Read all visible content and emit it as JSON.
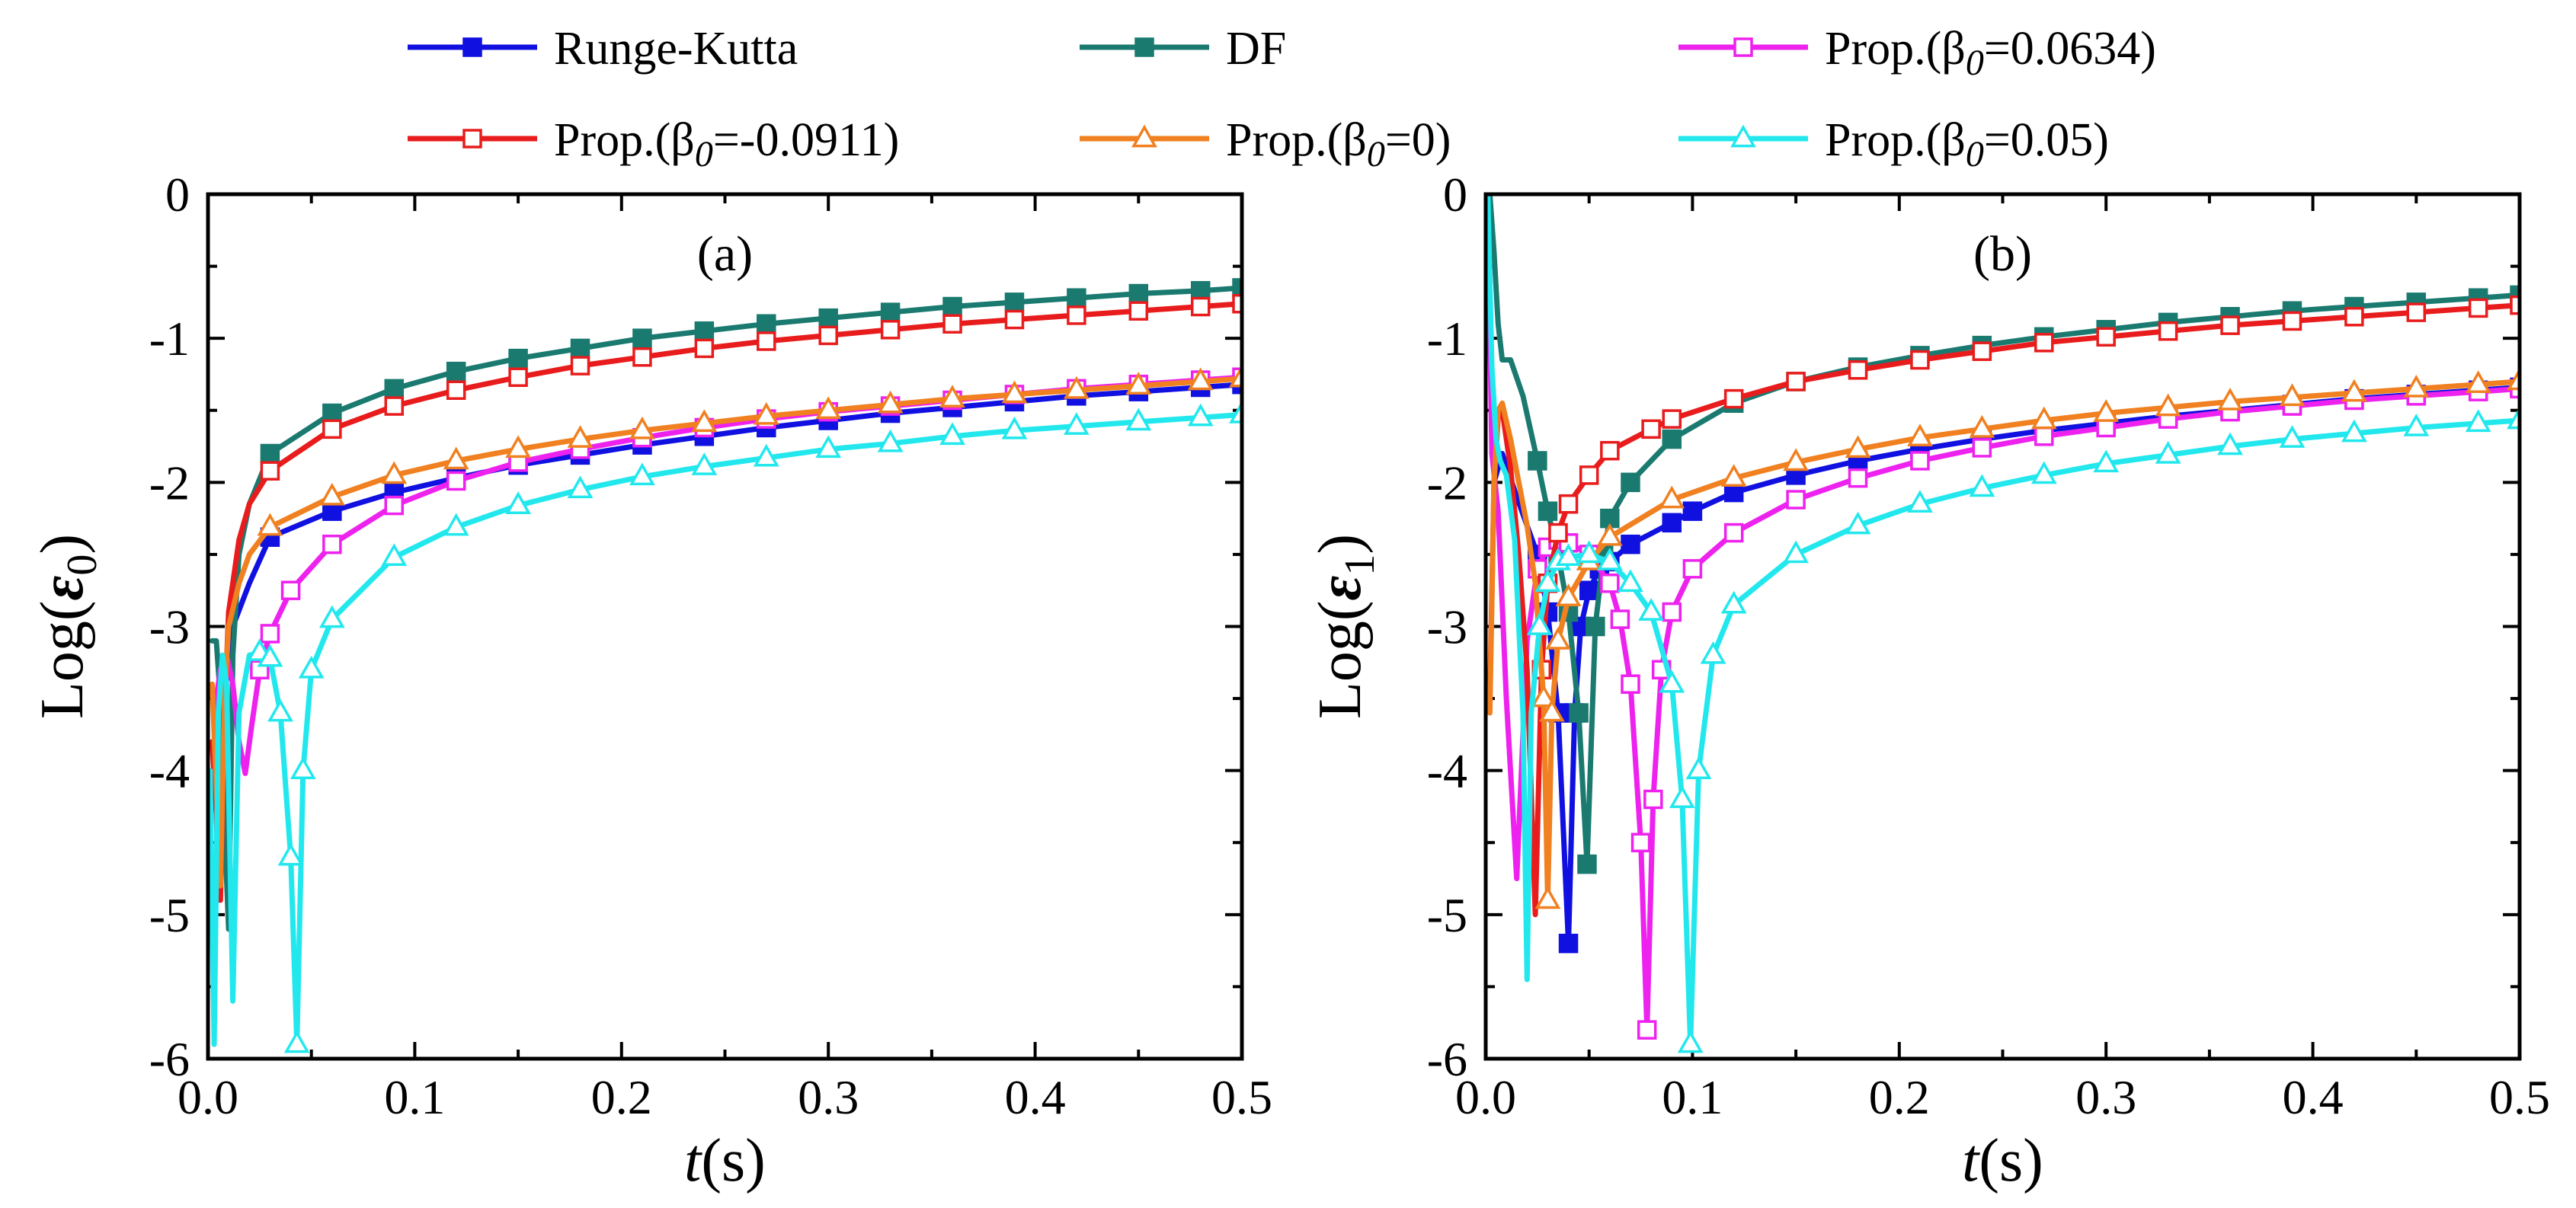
{
  "legend": {
    "entries": [
      {
        "series": "rk",
        "prefix": "Runge-Kutta",
        "sub": "",
        "suffix": ""
      },
      {
        "series": "df",
        "prefix": "DF",
        "sub": "",
        "suffix": ""
      },
      {
        "series": "p0634",
        "prefix": "Prop.(β",
        "sub": "0",
        "suffix": "=0.0634)"
      },
      {
        "series": "pm0911",
        "prefix": "Prop.(β",
        "sub": "0",
        "suffix": "=-0.0911)"
      },
      {
        "series": "p0",
        "prefix": "Prop.(β",
        "sub": "0",
        "suffix": "=0)"
      },
      {
        "series": "p05",
        "prefix": "Prop.(β",
        "sub": "0",
        "suffix": "=0.05)"
      }
    ]
  },
  "chart_data": [
    {
      "type": "line",
      "panel": "(a)",
      "xlabel": "t(s)",
      "ylabel": "Log(ε0)",
      "xlim": [
        0,
        0.5
      ],
      "ylim": [
        -6,
        0
      ],
      "xticks": [
        "0.0",
        "0.1",
        "0.2",
        "0.3",
        "0.4",
        "0.5"
      ],
      "yticks": [
        "0",
        "-1",
        "-2",
        "-3",
        "-4",
        "-5",
        "-6"
      ],
      "series": [
        {
          "key": "rk",
          "name": "Runge-Kutta",
          "color": "#1010e0",
          "marker": "square-filled",
          "x": [
            0.003,
            0.005,
            0.007,
            0.009,
            0.012,
            0.02,
            0.03,
            0.06,
            0.09,
            0.12,
            0.15,
            0.18,
            0.21,
            0.24,
            0.27,
            0.3,
            0.33,
            0.36,
            0.39,
            0.42,
            0.45,
            0.48,
            0.5
          ],
          "y": [
            -3.6,
            -4.9,
            -4.6,
            -3.3,
            -3.0,
            -2.7,
            -2.38,
            -2.2,
            -2.07,
            -1.97,
            -1.88,
            -1.81,
            -1.74,
            -1.68,
            -1.62,
            -1.57,
            -1.52,
            -1.48,
            -1.44,
            -1.4,
            -1.37,
            -1.34,
            -1.32
          ]
        },
        {
          "key": "df",
          "name": "DF",
          "color": "#1a7a70",
          "marker": "square-filled",
          "x": [
            0.002,
            0.004,
            0.006,
            0.008,
            0.01,
            0.012,
            0.015,
            0.02,
            0.03,
            0.06,
            0.09,
            0.12,
            0.15,
            0.18,
            0.21,
            0.24,
            0.27,
            0.3,
            0.33,
            0.36,
            0.39,
            0.42,
            0.45,
            0.48,
            0.5
          ],
          "y": [
            -3.1,
            -3.1,
            -3.5,
            -4.4,
            -5.1,
            -3.2,
            -2.5,
            -2.15,
            -1.8,
            -1.52,
            -1.35,
            -1.23,
            -1.14,
            -1.07,
            -1.0,
            -0.95,
            -0.9,
            -0.86,
            -0.82,
            -0.78,
            -0.75,
            -0.72,
            -0.69,
            -0.67,
            -0.65
          ]
        },
        {
          "key": "p0634",
          "name": "Prop.(β0=0.0634)",
          "color": "#ee22ee",
          "marker": "square-open",
          "x": [
            0.003,
            0.006,
            0.009,
            0.012,
            0.015,
            0.018,
            0.021,
            0.025,
            0.03,
            0.04,
            0.06,
            0.09,
            0.12,
            0.15,
            0.18,
            0.21,
            0.24,
            0.27,
            0.3,
            0.33,
            0.36,
            0.39,
            0.42,
            0.45,
            0.48,
            0.5
          ],
          "y": [
            -3.6,
            -3.3,
            -3.2,
            -3.4,
            -3.8,
            -4.02,
            -3.7,
            -3.3,
            -3.05,
            -2.75,
            -2.43,
            -2.16,
            -1.99,
            -1.86,
            -1.77,
            -1.69,
            -1.62,
            -1.56,
            -1.51,
            -1.47,
            -1.43,
            -1.39,
            -1.35,
            -1.32,
            -1.29,
            -1.27
          ]
        },
        {
          "key": "pm0911",
          "name": "Prop.(β0=-0.0911)",
          "color": "#e81c1c",
          "marker": "square-open",
          "x": [
            0.002,
            0.004,
            0.006,
            0.008,
            0.01,
            0.015,
            0.02,
            0.03,
            0.06,
            0.09,
            0.12,
            0.15,
            0.18,
            0.21,
            0.24,
            0.27,
            0.3,
            0.33,
            0.36,
            0.39,
            0.42,
            0.45,
            0.48,
            0.5
          ],
          "y": [
            -3.8,
            -4.3,
            -4.9,
            -3.6,
            -2.9,
            -2.4,
            -2.15,
            -1.92,
            -1.63,
            -1.47,
            -1.36,
            -1.27,
            -1.19,
            -1.13,
            -1.07,
            -1.02,
            -0.98,
            -0.94,
            -0.9,
            -0.87,
            -0.84,
            -0.81,
            -0.78,
            -0.76
          ]
        },
        {
          "key": "p0",
          "name": "Prop.(β0=0)",
          "color": "#f08020",
          "marker": "triangle-open",
          "x": [
            0.002,
            0.004,
            0.006,
            0.008,
            0.01,
            0.015,
            0.02,
            0.03,
            0.06,
            0.09,
            0.12,
            0.15,
            0.18,
            0.21,
            0.24,
            0.27,
            0.3,
            0.33,
            0.36,
            0.39,
            0.42,
            0.45,
            0.48,
            0.5
          ],
          "y": [
            -3.4,
            -4.1,
            -4.8,
            -3.5,
            -3.0,
            -2.7,
            -2.5,
            -2.31,
            -2.1,
            -1.95,
            -1.85,
            -1.77,
            -1.7,
            -1.64,
            -1.59,
            -1.54,
            -1.5,
            -1.46,
            -1.42,
            -1.39,
            -1.36,
            -1.33,
            -1.3,
            -1.28
          ]
        },
        {
          "key": "p05",
          "name": "Prop.(β0=0.05)",
          "color": "#22e8ee",
          "marker": "triangle-open",
          "x": [
            0.001,
            0.003,
            0.005,
            0.007,
            0.009,
            0.012,
            0.015,
            0.02,
            0.025,
            0.03,
            0.035,
            0.04,
            0.043,
            0.046,
            0.05,
            0.06,
            0.09,
            0.12,
            0.15,
            0.18,
            0.21,
            0.24,
            0.27,
            0.3,
            0.33,
            0.36,
            0.39,
            0.42,
            0.45,
            0.48,
            0.5
          ],
          "y": [
            -4.0,
            -5.9,
            -3.6,
            -3.2,
            -3.4,
            -5.6,
            -3.6,
            -3.2,
            -3.18,
            -3.22,
            -3.6,
            -4.6,
            -5.9,
            -4.0,
            -3.3,
            -2.95,
            -2.52,
            -2.31,
            -2.16,
            -2.05,
            -1.96,
            -1.89,
            -1.83,
            -1.77,
            -1.73,
            -1.68,
            -1.64,
            -1.61,
            -1.58,
            -1.55,
            -1.53
          ]
        }
      ]
    },
    {
      "type": "line",
      "panel": "(b)",
      "xlabel": "t(s)",
      "ylabel": "Log(ε1)",
      "xlim": [
        0,
        0.5
      ],
      "ylim": [
        -6,
        0
      ],
      "xticks": [
        "0.0",
        "0.1",
        "0.2",
        "0.3",
        "0.4",
        "0.5"
      ],
      "yticks": [
        "0",
        "-1",
        "-2",
        "-3",
        "-4",
        "-5",
        "-6"
      ],
      "series": [
        {
          "key": "rk",
          "name": "Runge-Kutta",
          "color": "#1010e0",
          "marker": "square-filled",
          "x": [
            0.004,
            0.008,
            0.015,
            0.02,
            0.025,
            0.03,
            0.035,
            0.04,
            0.043,
            0.046,
            0.05,
            0.055,
            0.06,
            0.07,
            0.09,
            0.1,
            0.12,
            0.15,
            0.18,
            0.21,
            0.24,
            0.27,
            0.3,
            0.33,
            0.36,
            0.39,
            0.42,
            0.45,
            0.48,
            0.5
          ],
          "y": [
            -2.0,
            -1.8,
            -2.1,
            -2.3,
            -2.5,
            -2.9,
            -3.6,
            -5.2,
            -3.6,
            -3.0,
            -2.75,
            -2.6,
            -2.55,
            -2.43,
            -2.28,
            -2.2,
            -2.07,
            -1.95,
            -1.85,
            -1.77,
            -1.7,
            -1.64,
            -1.59,
            -1.54,
            -1.5,
            -1.46,
            -1.42,
            -1.39,
            -1.36,
            -1.34
          ]
        },
        {
          "key": "df",
          "name": "DF",
          "color": "#1a7a70",
          "marker": "square-filled",
          "x": [
            0.002,
            0.004,
            0.006,
            0.008,
            0.012,
            0.018,
            0.025,
            0.03,
            0.035,
            0.04,
            0.045,
            0.049,
            0.053,
            0.057,
            0.06,
            0.07,
            0.09,
            0.12,
            0.15,
            0.18,
            0.21,
            0.24,
            0.27,
            0.3,
            0.33,
            0.36,
            0.39,
            0.42,
            0.45,
            0.48,
            0.5
          ],
          "y": [
            0.0,
            -0.4,
            -0.9,
            -1.15,
            -1.15,
            -1.4,
            -1.85,
            -2.2,
            -2.5,
            -2.9,
            -3.6,
            -4.65,
            -3.0,
            -2.5,
            -2.25,
            -2.0,
            -1.7,
            -1.45,
            -1.3,
            -1.2,
            -1.12,
            -1.05,
            -0.99,
            -0.94,
            -0.89,
            -0.85,
            -0.81,
            -0.78,
            -0.75,
            -0.72,
            -0.7
          ]
        },
        {
          "key": "p0634",
          "name": "Prop.(β0=0.0634)",
          "color": "#ee22ee",
          "marker": "square-open",
          "x": [
            0.001,
            0.003,
            0.006,
            0.01,
            0.015,
            0.02,
            0.025,
            0.03,
            0.035,
            0.04,
            0.05,
            0.06,
            0.065,
            0.07,
            0.075,
            0.078,
            0.081,
            0.085,
            0.09,
            0.1,
            0.12,
            0.15,
            0.18,
            0.21,
            0.24,
            0.27,
            0.3,
            0.33,
            0.36,
            0.39,
            0.42,
            0.45,
            0.48,
            0.5
          ],
          "y": [
            0.0,
            -1.8,
            -2.2,
            -3.5,
            -4.75,
            -3.1,
            -2.6,
            -2.45,
            -2.4,
            -2.42,
            -2.5,
            -2.7,
            -2.95,
            -3.4,
            -4.5,
            -5.8,
            -4.2,
            -3.3,
            -2.9,
            -2.6,
            -2.35,
            -2.12,
            -1.97,
            -1.85,
            -1.76,
            -1.68,
            -1.62,
            -1.56,
            -1.51,
            -1.47,
            -1.43,
            -1.4,
            -1.37,
            -1.35
          ]
        },
        {
          "key": "pm0911",
          "name": "Prop.(β0=-0.0911)",
          "color": "#e81c1c",
          "marker": "square-open",
          "x": [
            0.002,
            0.004,
            0.006,
            0.008,
            0.012,
            0.016,
            0.02,
            0.024,
            0.027,
            0.03,
            0.035,
            0.04,
            0.05,
            0.06,
            0.08,
            0.09,
            0.12,
            0.15,
            0.18,
            0.21,
            0.24,
            0.27,
            0.3,
            0.33,
            0.36,
            0.39,
            0.42,
            0.45,
            0.48,
            0.5
          ],
          "y": [
            -3.5,
            -2.0,
            -1.55,
            -1.5,
            -1.9,
            -2.5,
            -3.3,
            -5.0,
            -3.3,
            -2.7,
            -2.35,
            -2.15,
            -1.95,
            -1.78,
            -1.63,
            -1.56,
            -1.42,
            -1.3,
            -1.22,
            -1.15,
            -1.09,
            -1.03,
            -0.99,
            -0.95,
            -0.91,
            -0.88,
            -0.85,
            -0.82,
            -0.79,
            -0.77
          ]
        },
        {
          "key": "p0",
          "name": "Prop.(β0=0)",
          "color": "#f08020",
          "marker": "triangle-open",
          "x": [
            0.002,
            0.004,
            0.006,
            0.008,
            0.012,
            0.016,
            0.02,
            0.024,
            0.028,
            0.03,
            0.032,
            0.035,
            0.04,
            0.05,
            0.06,
            0.09,
            0.12,
            0.15,
            0.18,
            0.21,
            0.24,
            0.27,
            0.3,
            0.33,
            0.36,
            0.39,
            0.42,
            0.45,
            0.48,
            0.5
          ],
          "y": [
            -3.6,
            -2.0,
            -1.5,
            -1.45,
            -1.7,
            -2.0,
            -2.3,
            -2.7,
            -3.5,
            -4.9,
            -3.6,
            -3.1,
            -2.8,
            -2.55,
            -2.38,
            -2.12,
            -1.97,
            -1.86,
            -1.77,
            -1.69,
            -1.63,
            -1.57,
            -1.52,
            -1.48,
            -1.44,
            -1.41,
            -1.38,
            -1.35,
            -1.32,
            -1.3
          ]
        },
        {
          "key": "p05",
          "name": "Prop.(β0=0.05)",
          "color": "#22e8ee",
          "marker": "triangle-open",
          "x": [
            0.001,
            0.003,
            0.005,
            0.007,
            0.01,
            0.014,
            0.018,
            0.02,
            0.022,
            0.026,
            0.03,
            0.035,
            0.04,
            0.05,
            0.06,
            0.07,
            0.08,
            0.09,
            0.095,
            0.099,
            0.103,
            0.11,
            0.12,
            0.15,
            0.18,
            0.21,
            0.24,
            0.27,
            0.3,
            0.33,
            0.36,
            0.39,
            0.42,
            0.45,
            0.48,
            0.5
          ],
          "y": [
            0.0,
            -1.2,
            -1.7,
            -1.85,
            -1.95,
            -2.4,
            -3.6,
            -5.45,
            -3.6,
            -3.0,
            -2.7,
            -2.55,
            -2.52,
            -2.5,
            -2.55,
            -2.7,
            -2.9,
            -3.4,
            -4.2,
            -5.9,
            -4.0,
            -3.2,
            -2.85,
            -2.5,
            -2.3,
            -2.15,
            -2.04,
            -1.95,
            -1.87,
            -1.81,
            -1.75,
            -1.7,
            -1.66,
            -1.62,
            -1.59,
            -1.57
          ]
        }
      ]
    }
  ]
}
